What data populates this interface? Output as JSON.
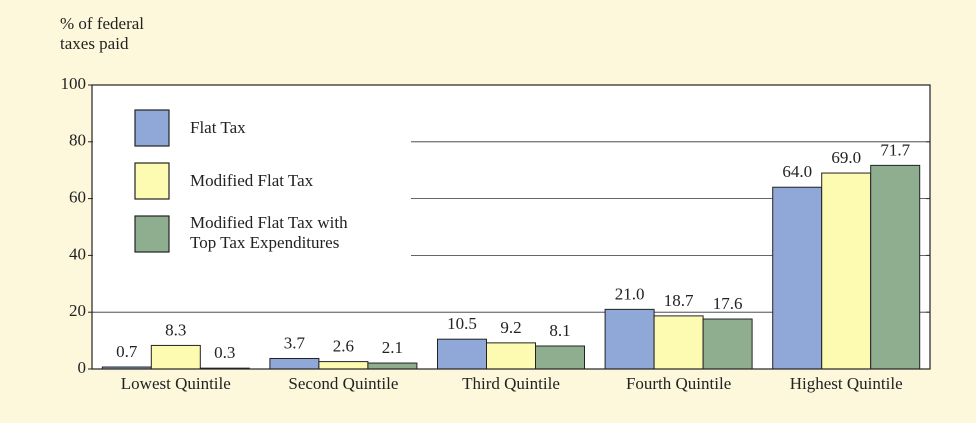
{
  "chart_data": {
    "type": "bar",
    "y_label": "% of federal\ntaxes paid",
    "categories": [
      "Lowest Quintile",
      "Second Quintile",
      "Third Quintile",
      "Fourth Quintile",
      "Highest Quintile"
    ],
    "series": [
      {
        "name": "Flat Tax",
        "color": "#8fa8d8",
        "values": [
          0.7,
          3.7,
          10.5,
          21.0,
          64.0
        ],
        "value_labels": [
          "0.7",
          "3.7",
          "10.5",
          "21.0",
          "64.0"
        ]
      },
      {
        "name": "Modified Flat Tax",
        "color": "#fdfbb2",
        "values": [
          8.3,
          2.6,
          9.2,
          18.7,
          69.0
        ],
        "value_labels": [
          "8.3",
          "2.6",
          "9.2",
          "18.7",
          "69.0"
        ]
      },
      {
        "name": "Modified Flat Tax with\nTop Tax Expenditures",
        "color": "#8fae8f",
        "values": [
          0.3,
          2.1,
          8.1,
          17.6,
          71.7
        ],
        "value_labels": [
          "0.3",
          "2.1",
          "8.1",
          "17.6",
          "71.7"
        ]
      }
    ],
    "ylim": [
      0,
      100
    ],
    "yticks": [
      0,
      20,
      40,
      60,
      80,
      100
    ],
    "grid": true
  }
}
